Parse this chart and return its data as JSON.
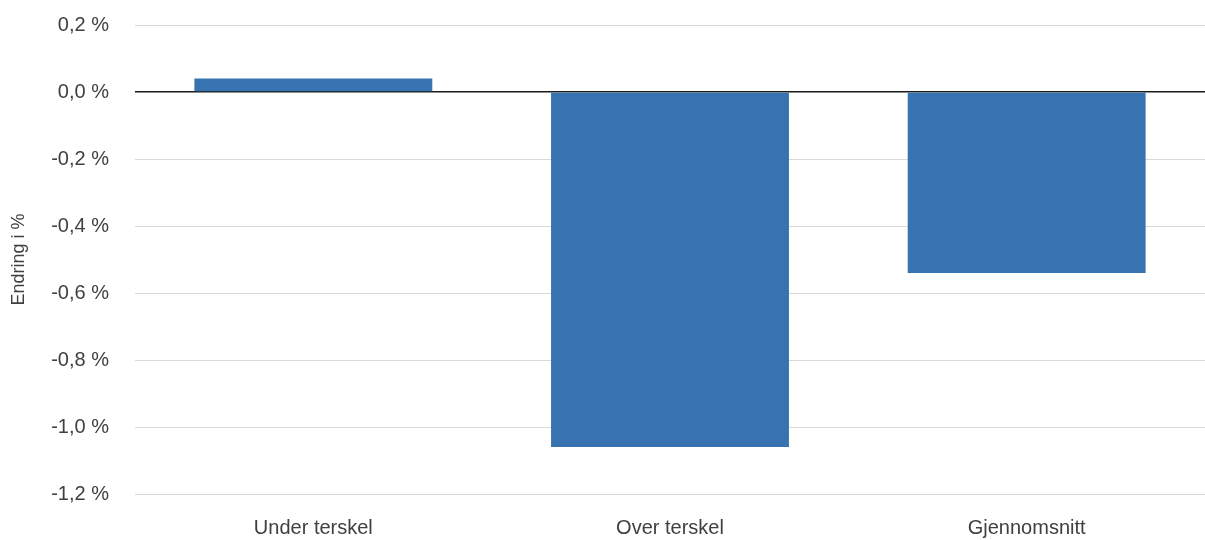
{
  "chart_data": {
    "type": "bar",
    "ylabel": "Endring i %",
    "categories": [
      "Under terskel",
      "Over terskel",
      "Gjennomsnitt"
    ],
    "values": [
      0.04,
      -1.06,
      -0.54
    ],
    "color": "#3673b0",
    "ylim": [
      -1.2,
      0.2
    ],
    "yticks": [
      {
        "value": 0.2,
        "label": "0,2 %"
      },
      {
        "value": 0,
        "label": "0,0 %"
      },
      {
        "value": -0.2,
        "label": "-0,2 %"
      },
      {
        "value": -0.4,
        "label": "-0,4 %"
      },
      {
        "value": -0.6,
        "label": "-0,6 %"
      },
      {
        "value": -0.8,
        "label": "-0,8 %"
      },
      {
        "value": -1,
        "label": "-1,0 %"
      },
      {
        "value": -1.2,
        "label": "-1,2 %"
      }
    ],
    "grid": "y",
    "legend": false
  }
}
